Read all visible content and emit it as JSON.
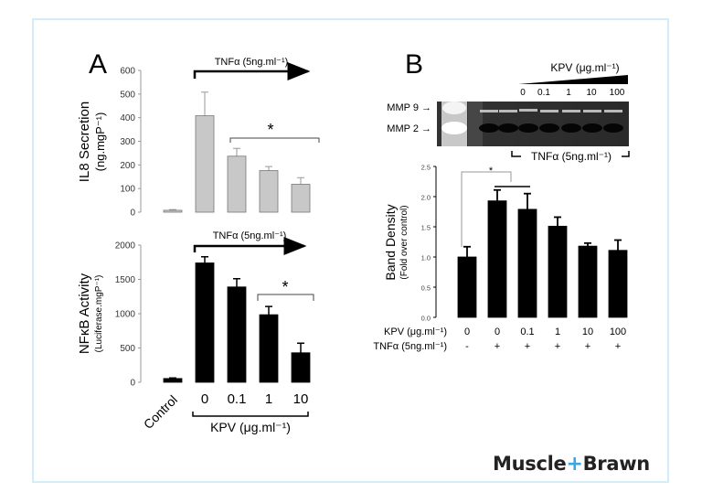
{
  "panels": {
    "A": {
      "label": "A"
    },
    "B": {
      "label": "B"
    }
  },
  "brand": {
    "part1": "Muscle",
    "plus": "+",
    "part2": "Brawn"
  },
  "colors": {
    "frame": "#d4ecf8",
    "brand_plus": "#3aa7e6",
    "gray_bar": "#c8c8c8",
    "black_bar": "#000000"
  },
  "labels": {
    "tnf_arrow": "TNFα (5ng.ml⁻¹)",
    "kpv_bracket": "KPV (μg.ml⁻¹)",
    "control": "Control",
    "mmp9": "MMP 9 →",
    "mmp2": "MMP 2 →",
    "gel_kpv_title": "KPV (μg.ml⁻¹)",
    "gel_tnf": "TNFα (5ng.ml⁻¹)",
    "b_row1_label": "KPV (μg.ml⁻¹)",
    "b_row2_label": "TNFα (5ng.ml⁻¹)",
    "star": "*"
  },
  "chart_data": [
    {
      "id": "A-top",
      "type": "bar",
      "title": "",
      "ylabel": "IL8 Secretion",
      "ylabel_sub": "(ng.mgP⁻¹)",
      "categories": [
        "Control",
        "0",
        "0.1",
        "1",
        "10"
      ],
      "values": [
        8,
        408,
        237,
        176,
        118
      ],
      "errors": [
        3,
        100,
        33,
        17,
        28
      ],
      "ylim": [
        0,
        600
      ],
      "yticks": [
        0,
        100,
        200,
        300,
        400,
        500,
        600
      ],
      "bar_color": "#c8c8c8",
      "annotation": "TNFα (5ng.ml⁻¹) applied to KPV groups; * significance bracket over 0.1–10"
    },
    {
      "id": "A-bottom",
      "type": "bar",
      "ylabel": "NFκB Activity",
      "ylabel_sub": "(Luciferase.mgP⁻¹)",
      "xlabel": "KPV (μg.ml⁻¹)",
      "categories": [
        "Control",
        "0",
        "0.1",
        "1",
        "10"
      ],
      "values": [
        55,
        1740,
        1390,
        985,
        430
      ],
      "errors": [
        8,
        90,
        120,
        120,
        140
      ],
      "ylim": [
        0,
        2000
      ],
      "yticks": [
        0,
        500,
        1000,
        1500,
        2000
      ],
      "bar_color": "#000000",
      "annotation": "* significance bracket over 1–10"
    },
    {
      "id": "B",
      "type": "bar",
      "ylabel": "Band Density",
      "ylabel_sub": "(Fold over control)",
      "categories": [
        "0",
        "0",
        "0.1",
        "1",
        "10",
        "100"
      ],
      "tnf": [
        "-",
        "+",
        "+",
        "+",
        "+",
        "+"
      ],
      "values": [
        1.0,
        1.93,
        1.79,
        1.51,
        1.18,
        1.11
      ],
      "errors": [
        0.17,
        0.18,
        0.26,
        0.15,
        0.05,
        0.17
      ],
      "ylim": [
        0,
        2.5
      ],
      "yticks": [
        "0.0",
        "0.5",
        "1.0",
        "1.5",
        "2.0",
        "2.5"
      ],
      "bar_color": "#000000",
      "annotation": "* between control and TNFα groups (0, 0.1)"
    }
  ],
  "gel": {
    "kpv_lanes": [
      "0",
      "0.1",
      "1",
      "10",
      "100"
    ]
  }
}
